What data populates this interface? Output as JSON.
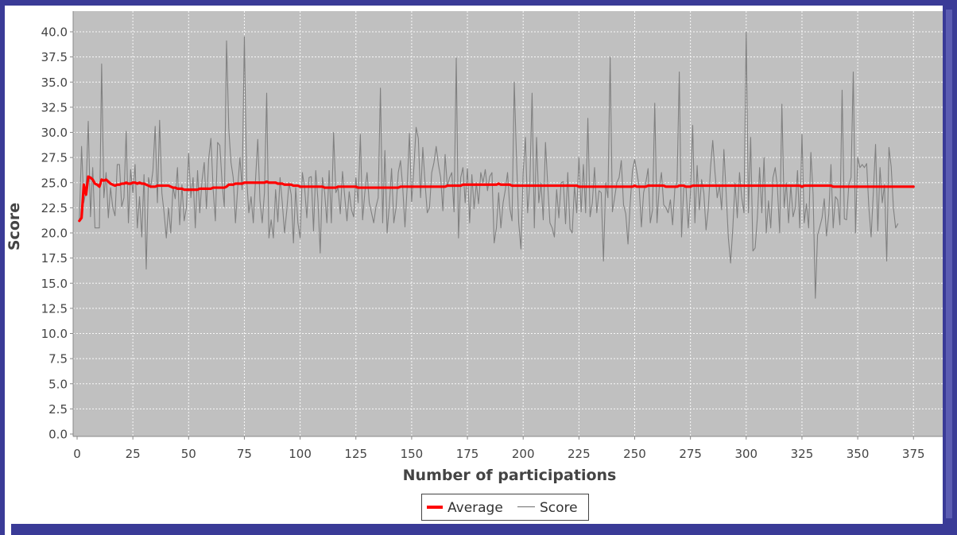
{
  "colors": {
    "frame": "#3A3B97",
    "plot_background": "#C0C0C0",
    "average_line": "#FF0000",
    "score_line": "#808080",
    "gridline": "#FFFFFF"
  },
  "chart_data": {
    "type": "line",
    "title": "",
    "xlabel": "Number of participations",
    "ylabel": "Score",
    "xlim": [
      0,
      380
    ],
    "ylim": [
      0,
      41.7
    ],
    "x_ticks": [
      0,
      25,
      50,
      75,
      100,
      125,
      150,
      175,
      200,
      225,
      250,
      275,
      300,
      325,
      350,
      375
    ],
    "x_tick_labels": [
      "0",
      "25",
      "50",
      "75",
      "100",
      "125",
      "150",
      "175",
      "200",
      "225",
      "250",
      "275",
      "300",
      "325",
      "350",
      "375"
    ],
    "y_ticks": [
      0,
      2.5,
      5,
      7.5,
      10,
      12.5,
      15,
      17.5,
      20,
      22.5,
      25,
      27.5,
      30,
      32.5,
      35,
      37.5,
      40
    ],
    "y_tick_labels": [
      "0.0",
      "2.5",
      "5.0",
      "7.5",
      "10.0",
      "12.5",
      "15.0",
      "17.5",
      "20.0",
      "22.5",
      "25.0",
      "27.5",
      "30.0",
      "32.5",
      "35.0",
      "37.5",
      "40.0"
    ],
    "grid": true,
    "legend_position": "bottom",
    "legend": [
      {
        "label": "Average",
        "color": "#FF0000"
      },
      {
        "label": "Score",
        "color": "#808080"
      }
    ],
    "series": [
      {
        "name": "Score",
        "color": "#808080",
        "x_start": 1,
        "x_step": 1,
        "values": [
          21.2,
          28.6,
          23.0,
          24.2,
          31.1,
          21.6,
          26.5,
          20.5,
          20.5,
          20.5,
          36.8,
          23.5,
          26.0,
          21.5,
          24.5,
          22.5,
          21.7,
          26.8,
          26.8,
          22.6,
          23.5,
          30.1,
          21.0,
          26.3,
          24.0,
          26.8,
          20.5,
          23.6,
          19.6,
          25.8,
          16.4,
          25.5,
          24.5,
          26.2,
          30.6,
          23.0,
          31.2,
          24.0,
          22.0,
          19.5,
          22.5,
          20.0,
          24.6,
          23.4,
          26.5,
          20.8,
          24.8,
          21.2,
          22.5,
          27.9,
          23.5,
          25.5,
          20.5,
          26.2,
          22.0,
          25.2,
          27.0,
          22.4,
          27.4,
          29.4,
          24.3,
          21.2,
          29.0,
          28.7,
          25.0,
          22.6,
          39.1,
          30.4,
          27.0,
          25.5,
          21.0,
          24.5,
          27.5,
          24.3,
          39.5,
          25.5,
          22.0,
          23.6,
          21.0,
          25.3,
          29.3,
          23.2,
          21.0,
          24.0,
          33.9,
          19.5,
          21.3,
          19.5,
          24.3,
          21.1,
          25.5,
          23.0,
          20.0,
          22.2,
          25.0,
          23.8,
          19.0,
          24.5,
          21.0,
          19.5,
          26.0,
          24.5,
          21.5,
          25.5,
          25.6,
          20.2,
          26.2,
          23.2,
          18.0,
          25.5,
          24.0,
          21.0,
          26.2,
          21.0,
          30.0,
          24.0,
          24.5,
          21.9,
          26.1,
          23.6,
          21.2,
          24.1,
          22.3,
          21.6,
          25.5,
          23.0,
          29.8,
          21.3,
          24.0,
          26.0,
          23.0,
          22.0,
          21.0,
          22.6,
          23.5,
          34.4,
          21.0,
          28.2,
          20.0,
          22.8,
          26.4,
          21.0,
          22.5,
          26.0,
          27.2,
          24.5,
          20.6,
          24.6,
          29.9,
          23.1,
          26.5,
          30.5,
          29.4,
          23.5,
          28.5,
          25.0,
          22.0,
          22.5,
          26.0,
          27.0,
          28.6,
          26.8,
          25.5,
          22.2,
          27.8,
          24.6,
          25.5,
          26.0,
          22.1,
          37.4,
          19.5,
          25.5,
          26.5,
          23.0,
          26.4,
          21.0,
          25.8,
          22.4,
          25.0,
          22.9,
          26.0,
          25.0,
          26.3,
          24.2,
          25.6,
          26.0,
          19.0,
          20.5,
          24.0,
          20.5,
          23.0,
          24.3,
          26.0,
          22.5,
          21.2,
          35.0,
          27.5,
          21.0,
          18.4,
          26.0,
          29.5,
          22.0,
          25.0,
          33.9,
          20.5,
          29.5,
          23.0,
          25.0,
          21.3,
          29.0,
          24.8,
          21.0,
          20.5,
          19.6,
          24.3,
          21.5,
          25.0,
          25.1,
          20.9,
          26.0,
          20.4,
          20.0,
          24.7,
          22.0,
          27.5,
          22.1,
          26.8,
          22.0,
          31.4,
          21.6,
          23.0,
          26.5,
          22.0,
          24.2,
          24.0,
          17.2,
          25.0,
          23.5,
          37.5,
          22.1,
          23.5,
          25.0,
          25.5,
          27.2,
          22.8,
          21.9,
          18.9,
          23.0,
          26.2,
          27.3,
          26.0,
          24.6,
          20.6,
          24.0,
          25.0,
          26.4,
          21.0,
          22.3,
          32.9,
          21.0,
          24.5,
          26.0,
          22.8,
          22.5,
          22.0,
          23.3,
          20.8,
          24.4,
          25.0,
          36.0,
          19.6,
          24.5,
          24.6,
          20.5,
          24.0,
          30.7,
          21.0,
          26.7,
          22.3,
          25.3,
          24.0,
          20.3,
          22.4,
          26.5,
          29.2,
          26.0,
          23.5,
          24.7,
          22.3,
          28.3,
          24.0,
          19.5,
          17.0,
          20.5,
          25.0,
          21.5,
          26.0,
          23.5,
          22.0,
          40.0,
          22.0,
          29.5,
          18.2,
          18.5,
          21.5,
          26.5,
          22.0,
          27.5,
          20.0,
          23.2,
          20.5,
          25.5,
          26.5,
          24.5,
          20.0,
          32.8,
          22.5,
          25.0,
          21.0,
          24.8,
          21.6,
          22.5,
          26.2,
          20.5,
          29.8,
          21.0,
          22.9,
          20.5,
          28.0,
          23.8,
          13.5,
          19.8,
          20.6,
          21.5,
          23.4,
          19.7,
          21.8,
          26.8,
          20.5,
          23.6,
          23.3,
          20.8,
          34.2,
          21.4,
          21.3,
          24.8,
          25.5,
          36.0,
          20.0,
          27.5,
          26.5,
          26.8,
          26.5,
          26.9,
          22.5,
          19.6,
          24.0,
          28.8,
          20.2,
          26.5,
          23.0,
          24.8,
          17.2,
          28.5,
          26.6,
          22.5,
          20.5,
          20.9
        ]
      },
      {
        "name": "Average",
        "color": "#FF0000",
        "x_start": 1,
        "x_step": 1,
        "values": [
          21.2,
          21.5,
          24.8,
          23.8,
          25.6,
          25.5,
          25.3,
          24.9,
          24.8,
          24.6,
          25.3,
          25.2,
          25.3,
          25.1,
          24.9,
          24.8,
          24.7,
          24.8,
          24.8,
          24.9,
          24.9,
          25.0,
          24.9,
          24.9,
          25.0,
          25.0,
          24.9,
          25.0,
          24.9,
          24.9,
          24.8,
          24.7,
          24.6,
          24.6,
          24.6,
          24.7,
          24.7,
          24.7,
          24.7,
          24.7,
          24.7,
          24.6,
          24.5,
          24.5,
          24.4,
          24.4,
          24.4,
          24.3,
          24.3,
          24.3,
          24.3,
          24.3,
          24.3,
          24.3,
          24.4,
          24.4,
          24.4,
          24.4,
          24.4,
          24.4,
          24.5,
          24.5,
          24.5,
          24.5,
          24.5,
          24.5,
          24.6,
          24.8,
          24.8,
          24.8,
          24.9,
          24.9,
          24.9,
          24.9,
          25.0,
          25.0,
          25.0,
          25.0,
          25.0,
          25.0,
          25.0,
          25.0,
          25.0,
          25.0,
          25.1,
          25.0,
          25.0,
          25.0,
          25.0,
          24.9,
          24.9,
          24.9,
          24.8,
          24.8,
          24.8,
          24.8,
          24.7,
          24.7,
          24.7,
          24.6,
          24.6,
          24.6,
          24.6,
          24.6,
          24.6,
          24.6,
          24.6,
          24.6,
          24.6,
          24.6,
          24.5,
          24.5,
          24.5,
          24.5,
          24.5,
          24.5,
          24.6,
          24.6,
          24.6,
          24.6,
          24.6,
          24.6,
          24.6,
          24.6,
          24.6,
          24.5,
          24.5,
          24.5,
          24.5,
          24.5,
          24.5,
          24.5,
          24.5,
          24.5,
          24.5,
          24.5,
          24.5,
          24.5,
          24.5,
          24.5,
          24.5,
          24.5,
          24.5,
          24.5,
          24.6,
          24.6,
          24.6,
          24.6,
          24.6,
          24.6,
          24.6,
          24.6,
          24.6,
          24.6,
          24.6,
          24.6,
          24.6,
          24.6,
          24.6,
          24.6,
          24.6,
          24.6,
          24.6,
          24.6,
          24.6,
          24.7,
          24.7,
          24.7,
          24.7,
          24.7,
          24.7,
          24.7,
          24.8,
          24.8,
          24.8,
          24.8,
          24.8,
          24.8,
          24.8,
          24.8,
          24.8,
          24.8,
          24.8,
          24.8,
          24.8,
          24.8,
          24.8,
          24.8,
          24.9,
          24.8,
          24.8,
          24.8,
          24.8,
          24.8,
          24.7,
          24.7,
          24.7,
          24.7,
          24.7,
          24.7,
          24.7,
          24.7,
          24.7,
          24.7,
          24.7,
          24.7,
          24.7,
          24.7,
          24.7,
          24.7,
          24.7,
          24.7,
          24.7,
          24.7,
          24.7,
          24.7,
          24.7,
          24.7,
          24.7,
          24.7,
          24.7,
          24.7,
          24.7,
          24.7,
          24.6,
          24.6,
          24.6,
          24.6,
          24.6,
          24.6,
          24.6,
          24.6,
          24.6,
          24.6,
          24.6,
          24.6,
          24.6,
          24.6,
          24.6,
          24.6,
          24.6,
          24.6,
          24.6,
          24.6,
          24.6,
          24.6,
          24.6,
          24.6,
          24.6,
          24.7,
          24.6,
          24.6,
          24.6,
          24.6,
          24.6,
          24.7,
          24.7,
          24.7,
          24.7,
          24.7,
          24.7,
          24.7,
          24.7,
          24.6,
          24.6,
          24.6,
          24.6,
          24.6,
          24.6,
          24.7,
          24.7,
          24.7,
          24.6,
          24.6,
          24.6,
          24.7,
          24.7,
          24.7,
          24.7,
          24.7,
          24.7,
          24.7,
          24.7,
          24.7,
          24.7,
          24.7,
          24.7,
          24.7,
          24.7,
          24.7,
          24.7,
          24.7,
          24.7,
          24.7,
          24.7,
          24.7,
          24.7,
          24.7,
          24.7,
          24.7,
          24.7,
          24.7,
          24.7,
          24.7,
          24.7,
          24.7,
          24.7,
          24.7,
          24.7,
          24.7,
          24.7,
          24.7,
          24.7,
          24.7,
          24.7,
          24.7,
          24.7,
          24.7,
          24.7,
          24.7,
          24.7,
          24.7,
          24.7,
          24.7,
          24.6,
          24.7,
          24.7,
          24.7,
          24.7,
          24.7,
          24.7,
          24.7,
          24.7,
          24.7,
          24.7,
          24.7,
          24.7,
          24.7,
          24.6,
          24.6,
          24.6,
          24.6,
          24.6,
          24.6,
          24.6,
          24.6,
          24.6,
          24.6,
          24.6,
          24.6,
          24.6,
          24.6,
          24.6,
          24.6,
          24.6,
          24.6,
          24.6,
          24.6,
          24.6,
          24.6,
          24.6,
          24.6,
          24.6,
          24.6,
          24.6,
          24.6,
          24.6,
          24.6,
          24.6,
          24.6,
          24.6,
          24.6,
          24.6,
          24.6,
          24.6
        ]
      }
    ]
  }
}
